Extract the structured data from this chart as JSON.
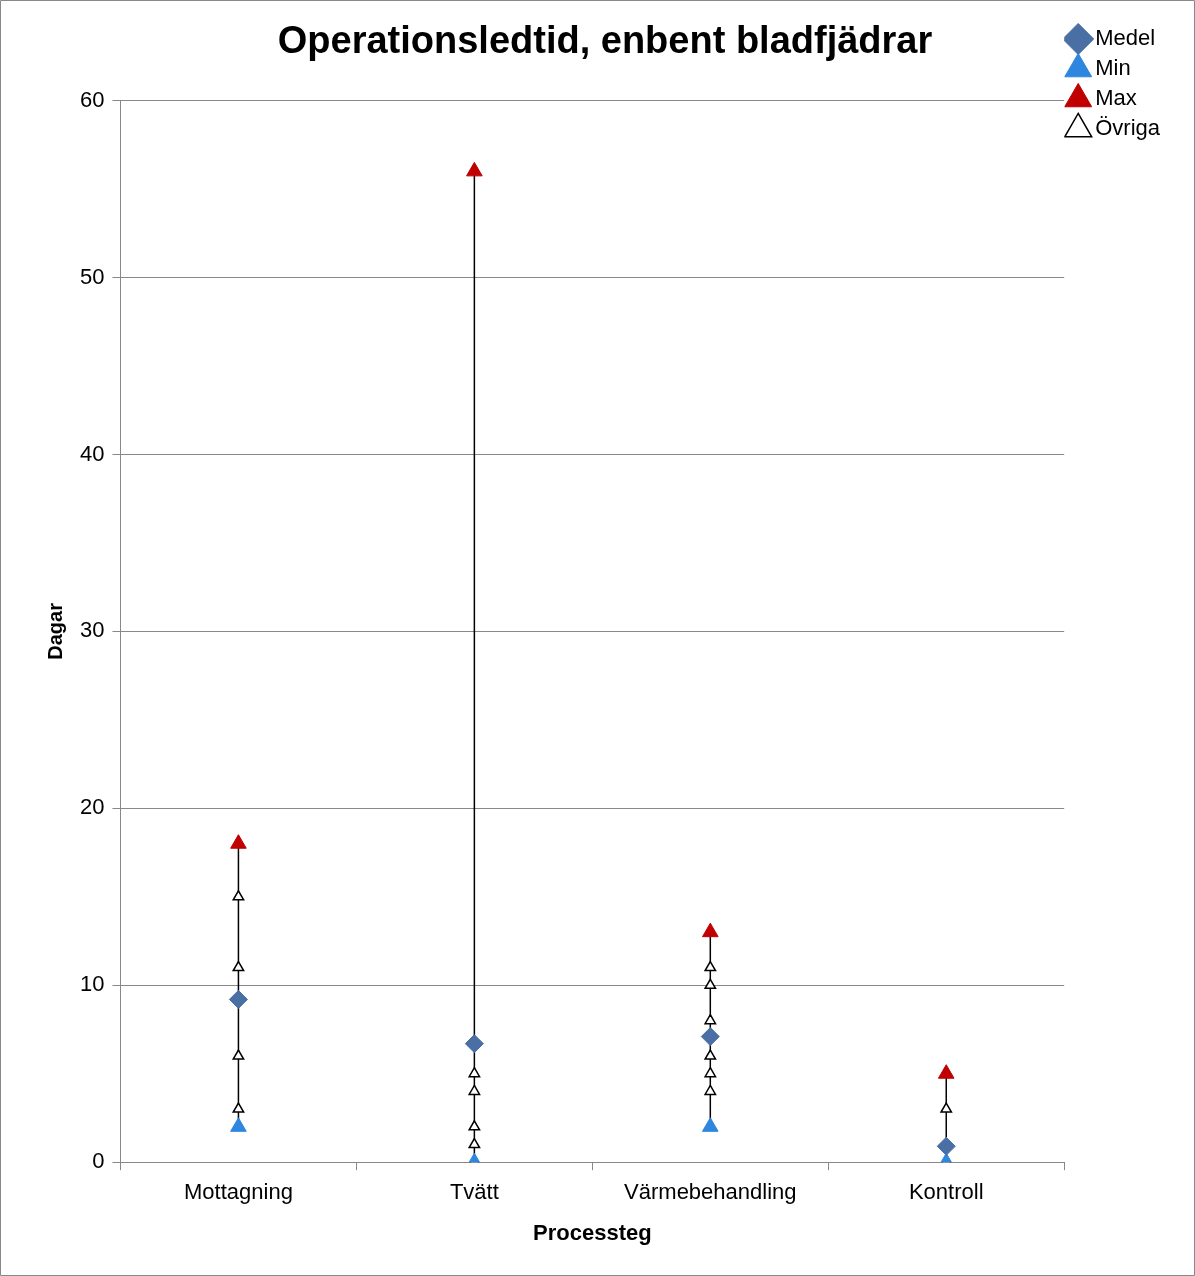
{
  "chart_data": {
    "type": "scatter",
    "title": "Operationsledtid, enbent bladfjädrar",
    "xlabel": "Processteg",
    "ylabel": "Dagar",
    "categories": [
      "Mottagning",
      "Tvätt",
      "Värmebehandling",
      "Kontroll"
    ],
    "series": [
      {
        "name": "Medel",
        "color": "#4a6fa5",
        "marker": "diamond",
        "x": [
          "Mottagning",
          "Tvätt",
          "Värmebehandling",
          "Kontroll"
        ],
        "values": [
          9.2,
          6.7,
          7.1,
          0.9
        ]
      },
      {
        "name": "Min",
        "color": "#2e86de",
        "marker": "triangle",
        "x": [
          "Mottagning",
          "Tvätt",
          "Värmebehandling",
          "Kontroll"
        ],
        "values": [
          2,
          0,
          2,
          0
        ]
      },
      {
        "name": "Max",
        "color": "#c00000",
        "marker": "triangle",
        "x": [
          "Mottagning",
          "Tvätt",
          "Värmebehandling",
          "Kontroll"
        ],
        "values": [
          18,
          56,
          13,
          5
        ]
      },
      {
        "name": "Övriga",
        "color": "#000000",
        "marker": "triangle",
        "x": [
          "Mottagning",
          "Mottagning",
          "Mottagning",
          "Mottagning",
          "Tvätt",
          "Tvätt",
          "Tvätt",
          "Tvätt",
          "Tvätt",
          "Värmebehandling",
          "Värmebehandling",
          "Värmebehandling",
          "Värmebehandling",
          "Värmebehandling",
          "Värmebehandling",
          "Kontroll",
          "Kontroll"
        ],
        "values": [
          15,
          11,
          6,
          3,
          5,
          4,
          2,
          1,
          0,
          11,
          10,
          8,
          6,
          5,
          4,
          3,
          0
        ]
      }
    ],
    "ylim": [
      0,
      60
    ],
    "yticks": [
      0,
      10,
      20,
      30,
      40,
      50,
      60
    ],
    "grid": "y",
    "legend": "right"
  }
}
